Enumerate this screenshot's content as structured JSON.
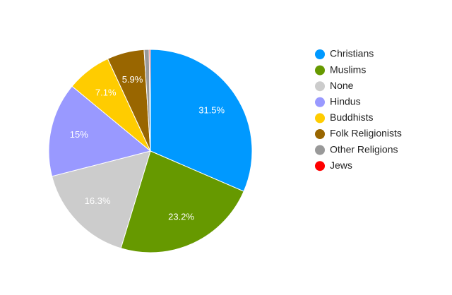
{
  "chart_data": {
    "type": "pie",
    "title": "",
    "legend_position": "right",
    "start_angle_deg": 0,
    "slices": [
      {
        "label": "Christians",
        "value": 31.5,
        "display": "31.5%",
        "color": "#0099ff"
      },
      {
        "label": "Muslims",
        "value": 23.2,
        "display": "23.2%",
        "color": "#669900"
      },
      {
        "label": "None",
        "value": 16.3,
        "display": "16.3%",
        "color": "#cccccc"
      },
      {
        "label": "Hindus",
        "value": 15.0,
        "display": "15%",
        "color": "#9999ff"
      },
      {
        "label": "Buddhists",
        "value": 7.1,
        "display": "7.1%",
        "color": "#ffcc00"
      },
      {
        "label": "Folk Religionists",
        "value": 5.9,
        "display": "5.9%",
        "color": "#996600"
      },
      {
        "label": "Other Religions",
        "value": 0.8,
        "display": "",
        "color": "#999999"
      },
      {
        "label": "Jews",
        "value": 0.2,
        "display": "",
        "color": "#ff0000"
      }
    ]
  }
}
